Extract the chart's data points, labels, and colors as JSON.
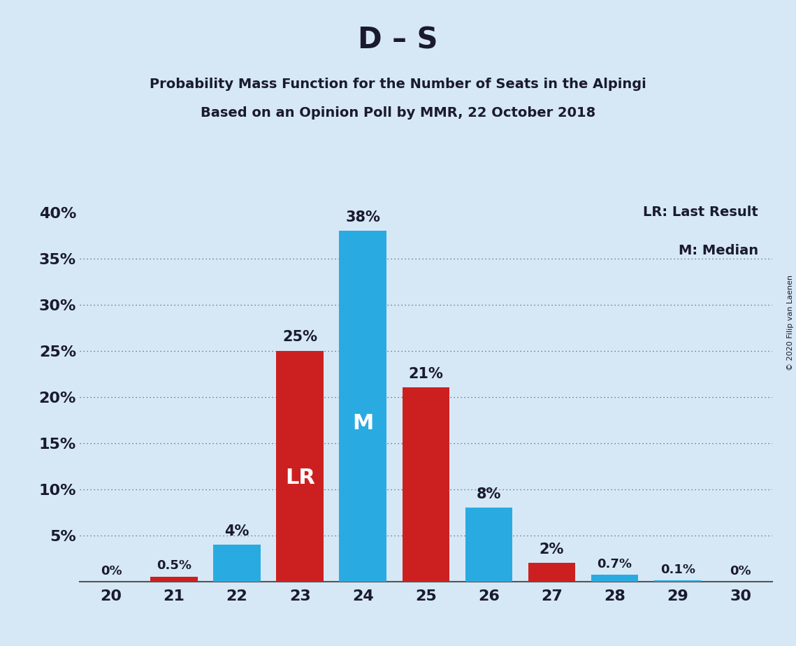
{
  "title": "D – S",
  "subtitle1": "Probability Mass Function for the Number of Seats in the Alpingi",
  "subtitle2": "Based on an Opinion Poll by MMR, 22 October 2018",
  "copyright": "© 2020 Filip van Laenen",
  "legend_lr": "LR: Last Result",
  "legend_m": "M: Median",
  "seats": [
    20,
    21,
    22,
    23,
    24,
    25,
    26,
    27,
    28,
    29,
    30
  ],
  "pmf_values": [
    0.0,
    0.5,
    4.0,
    25.0,
    38.0,
    21.0,
    8.0,
    2.0,
    0.7,
    0.1,
    0.0
  ],
  "pmf_labels": [
    "0%",
    "0.5%",
    "4%",
    "25%",
    "38%",
    "21%",
    "8%",
    "2%",
    "0.7%",
    "0.1%",
    "0%"
  ],
  "red_seats": [
    21,
    23,
    25,
    27
  ],
  "last_result_seat": 23,
  "median_seat": 24,
  "bar_color_blue": "#29ABE2",
  "bar_color_red": "#CC2020",
  "background_color": "#D6E8F5",
  "text_color": "#1A1A2E",
  "ylim": [
    0,
    42
  ],
  "ytick_positions": [
    0,
    5,
    10,
    15,
    20,
    25,
    30,
    35,
    40
  ],
  "ytick_labels": [
    "",
    "5%",
    "10%",
    "15%",
    "20%",
    "25%",
    "30%",
    "35%",
    "40%"
  ],
  "grid_yticks": [
    5,
    10,
    15,
    20,
    25,
    30,
    35
  ],
  "bar_width": 0.75
}
